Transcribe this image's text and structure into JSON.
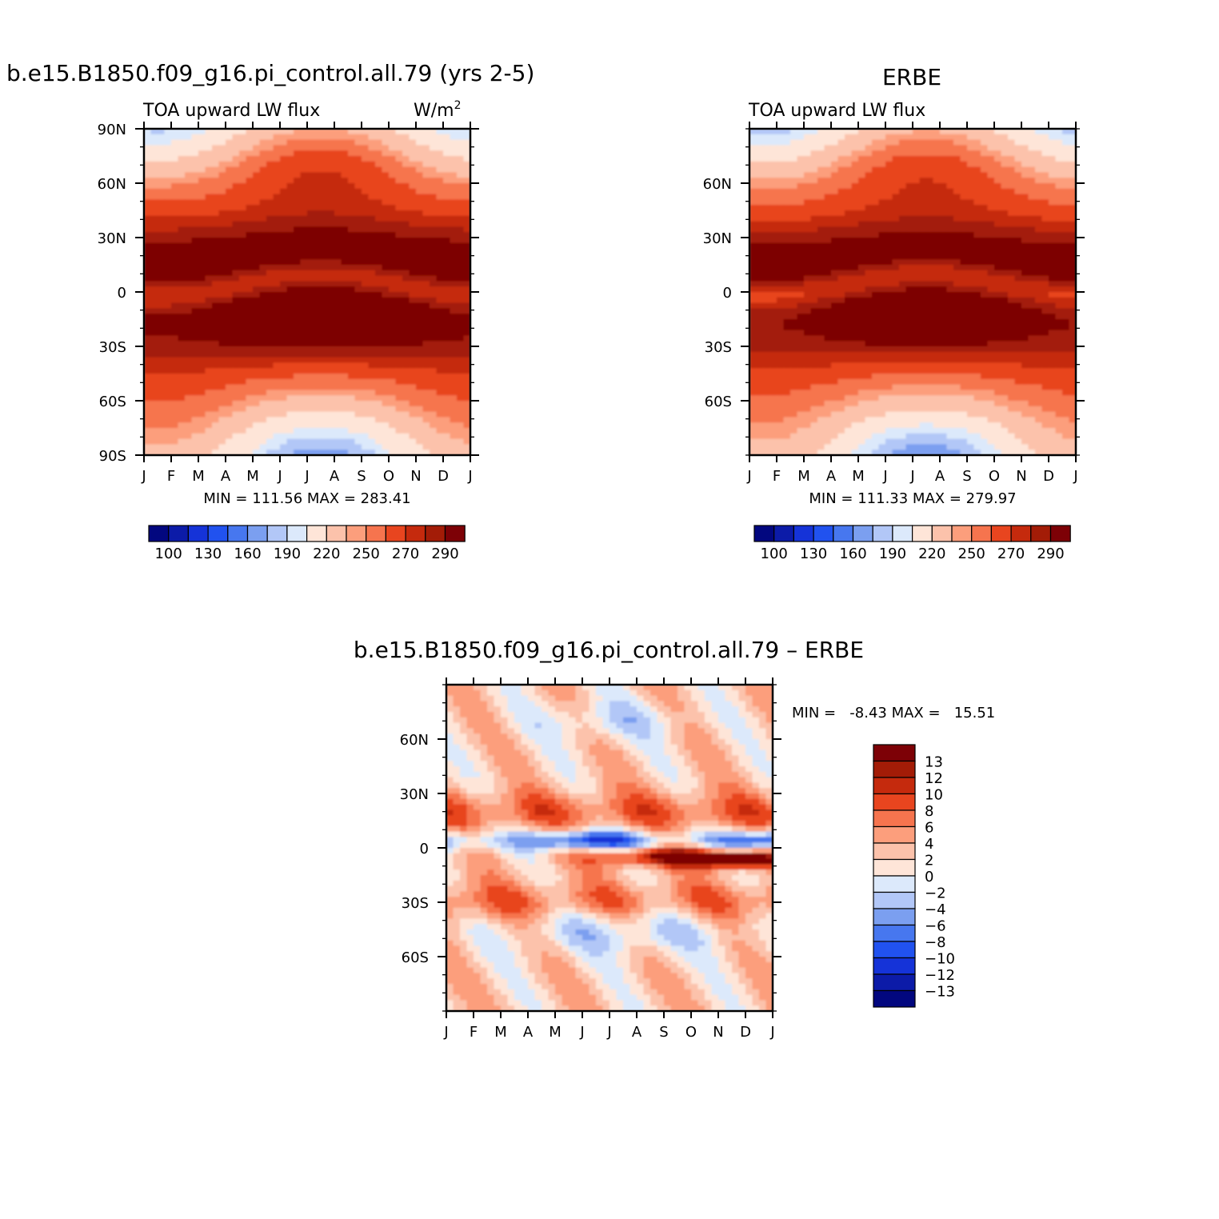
{
  "colors": {
    "abs_scale": [
      "#02077f",
      "#0c1ba8",
      "#1533d8",
      "#2152ef",
      "#4777ef",
      "#7b9ff0",
      "#b2c7f7",
      "#dce9fb",
      "#fee5d8",
      "#fcc2ab",
      "#fc9e7c",
      "#f6744e",
      "#e8451f",
      "#c52a0d",
      "#a31c07",
      "#7d0106"
    ],
    "diff_scale": [
      "#7d0106",
      "#a31c07",
      "#c52a0d",
      "#e8451f",
      "#f6744e",
      "#fc9e7c",
      "#fcc2ab",
      "#fee5d8",
      "#dce9fb",
      "#b2c7f7",
      "#7b9ff0",
      "#4777ef",
      "#2152ef",
      "#1533d8",
      "#0c1ba8",
      "#02077f"
    ]
  },
  "chart_data": [
    {
      "type": "heatmap",
      "name": "model",
      "title": "b.e15.B1850.f09_g16.pi_control.all.79 (yrs 2-5)",
      "left_subtitle": "TOA upward LW flux",
      "right_subtitle": "W/m",
      "right_subtitle_sup": "2",
      "x_ticks": [
        "J",
        "F",
        "M",
        "A",
        "M",
        "J",
        "J",
        "A",
        "S",
        "O",
        "N",
        "D",
        "J"
      ],
      "y_ticks": [
        "90N",
        "60N",
        "30N",
        "0",
        "30S",
        "60S",
        "90S"
      ],
      "y_tick_values": [
        90,
        60,
        30,
        0,
        -30,
        -60,
        -90
      ],
      "ylim": [
        -90,
        90
      ],
      "stats": "MIN = 111.56 MAX = 283.41",
      "colorbar_labels": [
        "100",
        "130",
        "160",
        "190",
        "220",
        "250",
        "270",
        "290"
      ],
      "levels": [
        100,
        110,
        120,
        130,
        140,
        150,
        160,
        170,
        180,
        190,
        200,
        210,
        220,
        230,
        240,
        250,
        260,
        270,
        280,
        290
      ]
    },
    {
      "type": "heatmap",
      "name": "obs",
      "title": "ERBE",
      "left_subtitle": "TOA upward LW flux",
      "x_ticks": [
        "J",
        "F",
        "M",
        "A",
        "M",
        "J",
        "J",
        "A",
        "S",
        "O",
        "N",
        "D",
        "J"
      ],
      "y_ticks": [
        "60N",
        "30N",
        "0",
        "30S",
        "60S"
      ],
      "y_tick_values": [
        60,
        30,
        0,
        -30,
        -60
      ],
      "ylim": [
        -90,
        90
      ],
      "stats": "MIN = 111.33 MAX = 279.97",
      "colorbar_labels": [
        "100",
        "130",
        "160",
        "190",
        "220",
        "250",
        "270",
        "290"
      ]
    },
    {
      "type": "heatmap",
      "name": "difference",
      "title": "b.e15.B1850.f09_g16.pi_control.all.79 – ERBE",
      "x_ticks": [
        "J",
        "F",
        "M",
        "A",
        "M",
        "J",
        "J",
        "A",
        "S",
        "O",
        "N",
        "D",
        "J"
      ],
      "y_ticks": [
        "60N",
        "30N",
        "0",
        "30S",
        "60S"
      ],
      "y_tick_values": [
        60,
        30,
        0,
        -30,
        -60
      ],
      "ylim": [
        -90,
        90
      ],
      "stats": "MIN =   -8.43 MAX =   15.51",
      "colorbar_labels": [
        "13",
        "12",
        "10",
        "8",
        "6",
        "4",
        "2",
        "0",
        "−2",
        "−4",
        "−6",
        "−8",
        "−10",
        "−12",
        "−13"
      ]
    }
  ]
}
